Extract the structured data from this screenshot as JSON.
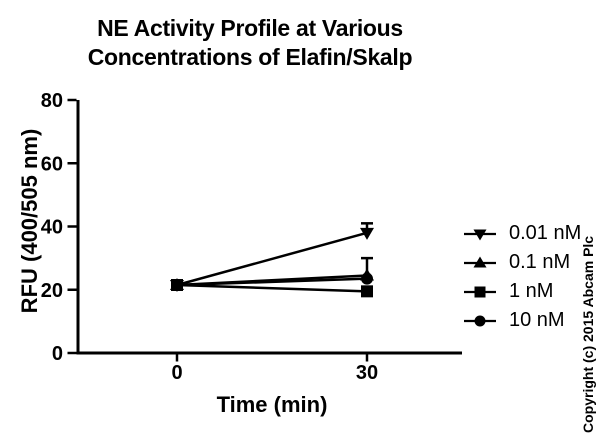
{
  "chart_data": {
    "type": "line",
    "title": "NE Activity Profile at Various Concentrations of Elafin/Skalp",
    "title_lines": [
      "NE Activity Profile at Various",
      "Concentrations of Elafin/Skalp"
    ],
    "xlabel": "Time (min)",
    "ylabel": "RFU (400/505 nm)",
    "x": [
      0,
      30
    ],
    "xticks": [
      0,
      30
    ],
    "yticks": [
      0,
      20,
      40,
      60,
      80
    ],
    "xlim": [
      -16,
      45
    ],
    "ylim": [
      0,
      80
    ],
    "grid": false,
    "legend_position": "right-center",
    "line_color": "#000000",
    "marker_color": "#000000",
    "background_color": "#ffffff",
    "series": [
      {
        "name": "0.01 nM",
        "marker": "triangle-down",
        "values": [
          21.5,
          38
        ],
        "errors_plus": [
          0,
          3
        ]
      },
      {
        "name": "0.1 nM",
        "marker": "triangle-up",
        "values": [
          21.5,
          24.5
        ],
        "errors_plus": [
          0,
          0
        ]
      },
      {
        "name": "1 nM",
        "marker": "square",
        "values": [
          21.5,
          19.5
        ],
        "errors_plus": [
          0,
          0
        ]
      },
      {
        "name": "10 nM",
        "marker": "circle",
        "values": [
          21.5,
          23.5
        ],
        "errors_plus": [
          0,
          6.5
        ]
      }
    ]
  },
  "copyright": "Copyright (c) 2015 Abcam Plc"
}
